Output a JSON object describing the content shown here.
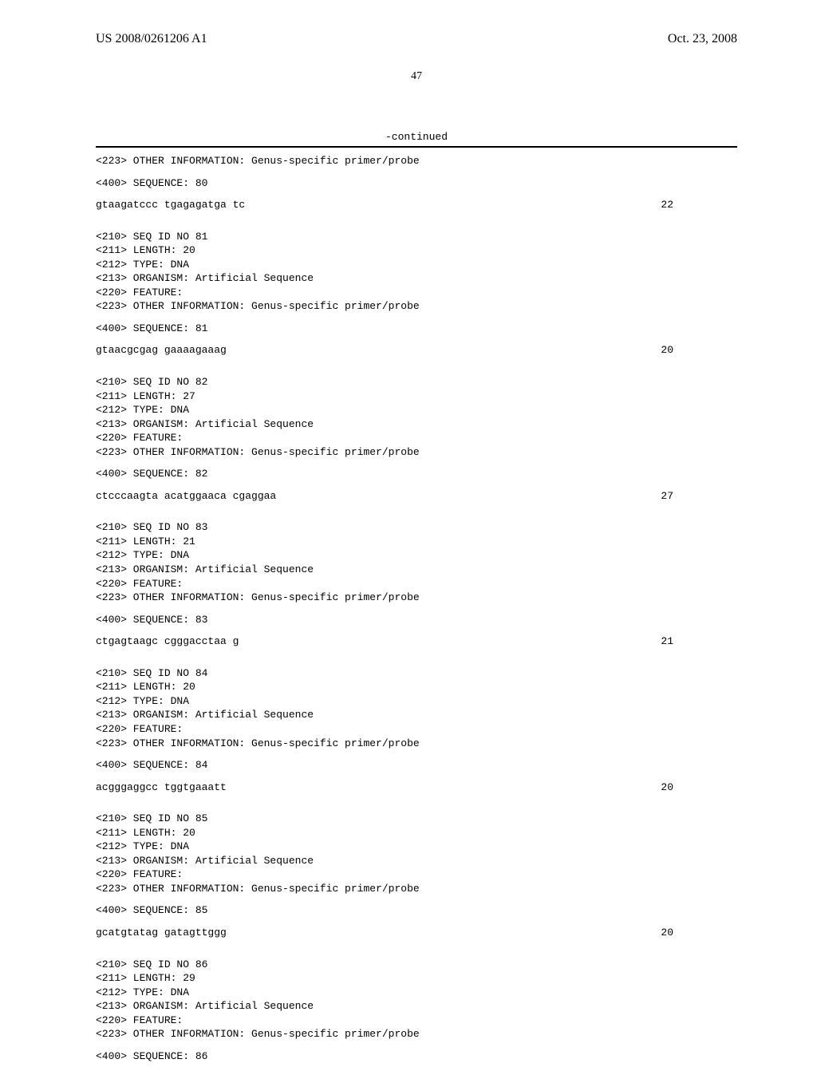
{
  "header": {
    "left": "US 2008/0261206 A1",
    "right": "Oct. 23, 2008"
  },
  "page_number": "47",
  "continued_label": "-continued",
  "entries": [
    {
      "pre_lines": [
        "<223> OTHER INFORMATION: Genus-specific primer/probe"
      ],
      "seq_label": "<400> SEQUENCE: 80",
      "sequence": "gtaagatccc tgagagatga tc",
      "length": "22"
    },
    {
      "pre_lines": [
        "<210> SEQ ID NO 81",
        "<211> LENGTH: 20",
        "<212> TYPE: DNA",
        "<213> ORGANISM: Artificial Sequence",
        "<220> FEATURE:",
        "<223> OTHER INFORMATION: Genus-specific primer/probe"
      ],
      "seq_label": "<400> SEQUENCE: 81",
      "sequence": "gtaacgcgag gaaaagaaag",
      "length": "20"
    },
    {
      "pre_lines": [
        "<210> SEQ ID NO 82",
        "<211> LENGTH: 27",
        "<212> TYPE: DNA",
        "<213> ORGANISM: Artificial Sequence",
        "<220> FEATURE:",
        "<223> OTHER INFORMATION: Genus-specific primer/probe"
      ],
      "seq_label": "<400> SEQUENCE: 82",
      "sequence": "ctcccaagta acatggaaca cgaggaa",
      "length": "27"
    },
    {
      "pre_lines": [
        "<210> SEQ ID NO 83",
        "<211> LENGTH: 21",
        "<212> TYPE: DNA",
        "<213> ORGANISM: Artificial Sequence",
        "<220> FEATURE:",
        "<223> OTHER INFORMATION: Genus-specific primer/probe"
      ],
      "seq_label": "<400> SEQUENCE: 83",
      "sequence": "ctgagtaagc cgggacctaa g",
      "length": "21"
    },
    {
      "pre_lines": [
        "<210> SEQ ID NO 84",
        "<211> LENGTH: 20",
        "<212> TYPE: DNA",
        "<213> ORGANISM: Artificial Sequence",
        "<220> FEATURE:",
        "<223> OTHER INFORMATION: Genus-specific primer/probe"
      ],
      "seq_label": "<400> SEQUENCE: 84",
      "sequence": "acgggaggcc tggtgaaatt",
      "length": "20"
    },
    {
      "pre_lines": [
        "<210> SEQ ID NO 85",
        "<211> LENGTH: 20",
        "<212> TYPE: DNA",
        "<213> ORGANISM: Artificial Sequence",
        "<220> FEATURE:",
        "<223> OTHER INFORMATION: Genus-specific primer/probe"
      ],
      "seq_label": "<400> SEQUENCE: 85",
      "sequence": "gcatgtatag gatagttggg",
      "length": "20"
    },
    {
      "pre_lines": [
        "<210> SEQ ID NO 86",
        "<211> LENGTH: 29",
        "<212> TYPE: DNA",
        "<213> ORGANISM: Artificial Sequence",
        "<220> FEATURE:",
        "<223> OTHER INFORMATION: Genus-specific primer/probe"
      ],
      "seq_label": "<400> SEQUENCE: 86",
      "sequence": "",
      "length": ""
    }
  ]
}
